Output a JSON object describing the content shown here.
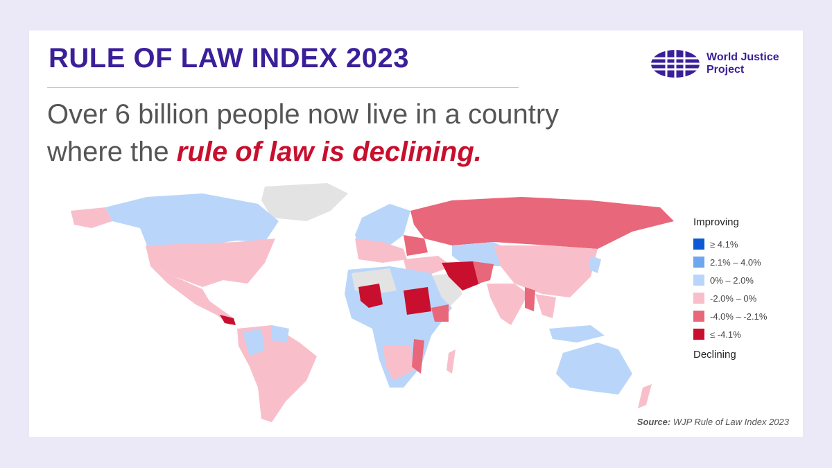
{
  "header": {
    "title": "RULE OF LAW INDEX 2023"
  },
  "subtitle": {
    "line1": "Over 6 billion people now live in a country",
    "line2_lead": "where the",
    "highlight": "rule of law is declining."
  },
  "logo": {
    "line1": "World Justice",
    "line2": "Project"
  },
  "legend": {
    "top_label": "Improving",
    "bottom_label": "Declining",
    "items": [
      {
        "label": "≥ 4.1%",
        "color": "#0a5bd3"
      },
      {
        "label": "2.1% – 4.0%",
        "color": "#6ea6ef"
      },
      {
        "label": "0% – 2.0%",
        "color": "#b9d6fa"
      },
      {
        "label": "-2.0% – 0%",
        "color": "#f8bfcb"
      },
      {
        "label": "-4.0% – -2.1%",
        "color": "#e8677a"
      },
      {
        "label": "≤ -4.1%",
        "color": "#c8102e"
      }
    ]
  },
  "source": {
    "label": "Source:",
    "text": "WJP Rule of Law Index 2023"
  }
}
